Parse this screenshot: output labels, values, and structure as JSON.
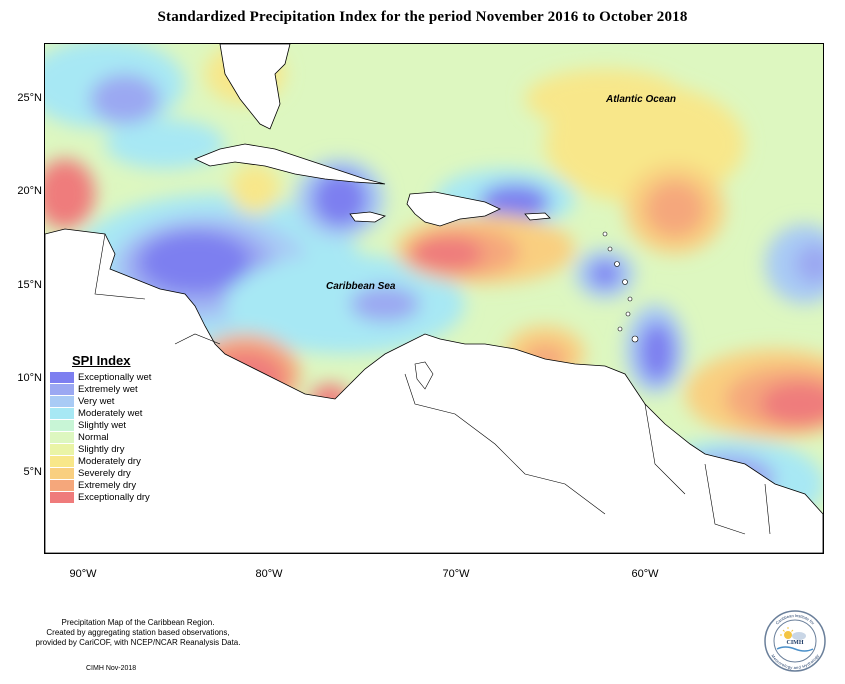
{
  "title": "Standardized Precipitation Index for the period November 2016 to October 2018",
  "map": {
    "latitude_labels": [
      "25°N",
      "20°N",
      "15°N",
      "10°N",
      "5°N"
    ],
    "longitude_labels": [
      "90°W",
      "80°W",
      "70°W",
      "60°W"
    ],
    "place_labels": {
      "atlantic": "Atlantic Ocean",
      "caribbean": "Caribbean Sea"
    },
    "land_color": "#ffffff",
    "background_color": "#ddf7c0"
  },
  "legend": {
    "title": "SPI Index",
    "items": [
      {
        "label": "Exceptionally wet",
        "color": "#7d7ff0"
      },
      {
        "label": "Extremely wet",
        "color": "#9ba8f2"
      },
      {
        "label": "Very wet",
        "color": "#a9cbf5"
      },
      {
        "label": "Moderately wet",
        "color": "#a7e8f4"
      },
      {
        "label": "Slightly wet",
        "color": "#c8f5d6"
      },
      {
        "label": "Normal",
        "color": "#ddf7c0"
      },
      {
        "label": "Slightly dry",
        "color": "#eaf4a6"
      },
      {
        "label": "Moderately dry",
        "color": "#f8e78a"
      },
      {
        "label": "Severely dry",
        "color": "#f9cf80"
      },
      {
        "label": "Extremely dry",
        "color": "#f5a77b"
      },
      {
        "label": "Exceptionally dry",
        "color": "#ef7b7b"
      }
    ]
  },
  "credits": {
    "line1": "Precipitation Map of the Caribbean Region.",
    "line2": "Created by aggregating station based observations,",
    "line3": "provided by CariCOF, with NCEP/NCAR Reanalysis Data.",
    "date": "CIMH Nov-2018"
  },
  "logo": {
    "abbr": "CIMH",
    "ring_top": "Caribbean Institute for",
    "ring_bottom": "Meteorology and Hydrology"
  }
}
